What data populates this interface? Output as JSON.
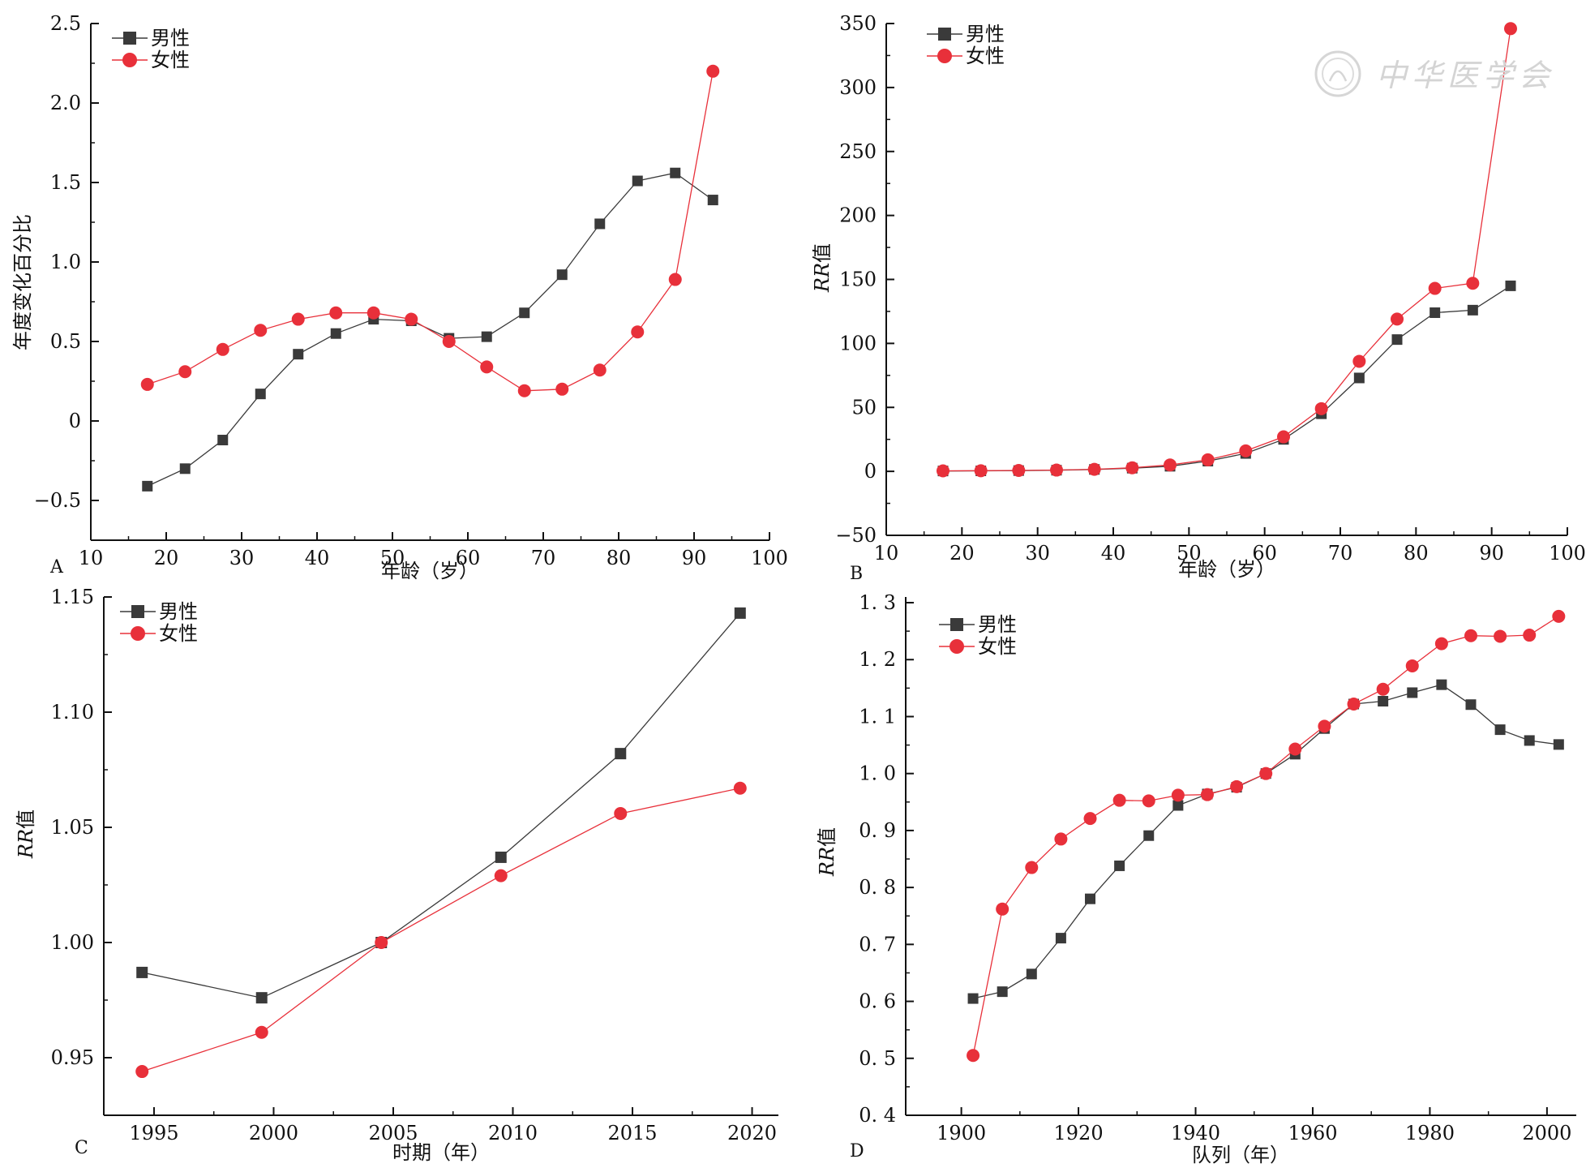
{
  "colors": {
    "male": "#3a3a3a",
    "female": "#e8303a",
    "axis": "#111111"
  },
  "watermark": "中华医学会",
  "chart_data": [
    {
      "panel": "A",
      "type": "line",
      "ylabel": "年度变化百分比",
      "xlabel": "年龄（岁）",
      "xlim": [
        10,
        100
      ],
      "ylim": [
        -0.75,
        2.5
      ],
      "xticks": [
        10,
        20,
        30,
        40,
        50,
        60,
        70,
        80,
        90,
        100
      ],
      "yticks": [
        -0.5,
        0,
        0.5,
        1.0,
        1.5,
        2.0,
        2.5
      ],
      "ytick_labels": [
        "−0.5",
        "0",
        "0.5",
        "1.0",
        "1.5",
        "2.0",
        "2.5"
      ],
      "legend": "top-left",
      "series": [
        {
          "name": "男性",
          "marker": "square",
          "x": [
            17.5,
            22.5,
            27.5,
            32.5,
            37.5,
            42.5,
            47.5,
            52.5,
            57.5,
            62.5,
            67.5,
            72.5,
            77.5,
            82.5,
            87.5,
            92.5
          ],
          "y": [
            -0.41,
            -0.3,
            -0.12,
            0.17,
            0.42,
            0.55,
            0.64,
            0.63,
            0.52,
            0.53,
            0.68,
            0.92,
            1.24,
            1.51,
            1.56,
            1.39
          ]
        },
        {
          "name": "女性",
          "marker": "circle",
          "x": [
            17.5,
            22.5,
            27.5,
            32.5,
            37.5,
            42.5,
            47.5,
            52.5,
            57.5,
            62.5,
            67.5,
            72.5,
            77.5,
            82.5,
            87.5,
            92.5
          ],
          "y": [
            0.23,
            0.31,
            0.45,
            0.57,
            0.64,
            0.68,
            0.68,
            0.64,
            0.5,
            0.34,
            0.19,
            0.2,
            0.32,
            0.56,
            0.89,
            2.2
          ]
        }
      ]
    },
    {
      "panel": "B",
      "type": "line",
      "ylabel": "RR值",
      "xlabel": "年龄（岁）",
      "xlim": [
        10,
        100
      ],
      "ylim": [
        -50,
        350
      ],
      "xticks": [
        10,
        20,
        30,
        40,
        50,
        60,
        70,
        80,
        90,
        100
      ],
      "yticks": [
        -50,
        0,
        50,
        100,
        150,
        200,
        250,
        300,
        350
      ],
      "ytick_labels": [
        "−50",
        "0",
        "50",
        "100",
        "150",
        "200",
        "250",
        "300",
        "350"
      ],
      "legend": "top-left",
      "series": [
        {
          "name": "男性",
          "marker": "square",
          "x": [
            17.5,
            22.5,
            27.5,
            32.5,
            37.5,
            42.5,
            47.5,
            52.5,
            57.5,
            62.5,
            67.5,
            72.5,
            77.5,
            82.5,
            87.5,
            92.5
          ],
          "y": [
            0.3,
            0.4,
            0.6,
            0.9,
            1.5,
            2.5,
            4,
            8,
            14,
            25,
            45,
            73,
            103,
            124,
            126,
            145
          ]
        },
        {
          "name": "女性",
          "marker": "circle",
          "x": [
            17.5,
            22.5,
            27.5,
            32.5,
            37.5,
            42.5,
            47.5,
            52.5,
            57.5,
            62.5,
            67.5,
            72.5,
            77.5,
            82.5,
            87.5,
            92.5
          ],
          "y": [
            0.4,
            0.5,
            0.7,
            1.0,
            1.6,
            2.8,
            5,
            9,
            16,
            27,
            49,
            86,
            119,
            143,
            147,
            346
          ]
        }
      ]
    },
    {
      "panel": "C",
      "type": "line",
      "ylabel": "RR值",
      "xlabel": "时期（年）",
      "xlim": [
        1992.9,
        2021.1
      ],
      "ylim": [
        0.925,
        1.15
      ],
      "xticks": [
        1995,
        2000,
        2005,
        2010,
        2015,
        2020
      ],
      "yticks": [
        0.95,
        1.0,
        1.05,
        1.1,
        1.15
      ],
      "ytick_labels": [
        "0.95",
        "1.00",
        "1.05",
        "1.10",
        "1.15"
      ],
      "legend": "top-left",
      "series": [
        {
          "name": "男性",
          "marker": "square",
          "x": [
            1994.5,
            1999.5,
            2004.5,
            2009.5,
            2014.5,
            2019.5
          ],
          "y": [
            0.987,
            0.976,
            1.0,
            1.037,
            1.082,
            1.143
          ]
        },
        {
          "name": "女性",
          "marker": "circle",
          "x": [
            1994.5,
            1999.5,
            2004.5,
            2009.5,
            2014.5,
            2019.5
          ],
          "y": [
            0.944,
            0.961,
            1.0,
            1.029,
            1.056,
            1.067
          ]
        }
      ]
    },
    {
      "panel": "D",
      "type": "line",
      "ylabel": "RR值",
      "xlabel": "队列（年）",
      "xlim": [
        1890.5,
        2005
      ],
      "ylim": [
        0.4,
        1.31
      ],
      "xticks": [
        1900,
        1920,
        1940,
        1960,
        1980,
        2000
      ],
      "yticks": [
        0.4,
        0.5,
        0.6,
        0.7,
        0.8,
        0.9,
        1.0,
        1.1,
        1.2,
        1.3
      ],
      "ytick_labels": [
        "0. 4",
        "0. 5",
        "0. 6",
        "0. 7",
        "0. 8",
        "0. 9",
        "1. 0",
        "1. 1",
        "1. 2",
        "1. 3"
      ],
      "legend": "top-left",
      "series": [
        {
          "name": "男性",
          "marker": "square",
          "x": [
            1902,
            1907,
            1912,
            1917,
            1922,
            1927,
            1932,
            1937,
            1942,
            1947,
            1952,
            1957,
            1962,
            1967,
            1972,
            1977,
            1982,
            1987,
            1992,
            1997,
            2002
          ],
          "y": [
            0.605,
            0.617,
            0.648,
            0.711,
            0.78,
            0.838,
            0.891,
            0.944,
            0.964,
            0.976,
            1.0,
            1.034,
            1.079,
            1.122,
            1.127,
            1.142,
            1.156,
            1.121,
            1.077,
            1.058,
            1.051
          ]
        },
        {
          "name": "女性",
          "marker": "circle",
          "x": [
            1902,
            1907,
            1912,
            1917,
            1922,
            1927,
            1932,
            1937,
            1942,
            1947,
            1952,
            1957,
            1962,
            1967,
            1972,
            1977,
            1982,
            1987,
            1992,
            1997,
            2002
          ],
          "y": [
            0.505,
            0.762,
            0.835,
            0.885,
            0.921,
            0.953,
            0.952,
            0.962,
            0.963,
            0.977,
            1.0,
            1.043,
            1.083,
            1.122,
            1.148,
            1.189,
            1.228,
            1.242,
            1.241,
            1.243,
            1.276
          ]
        }
      ]
    }
  ]
}
